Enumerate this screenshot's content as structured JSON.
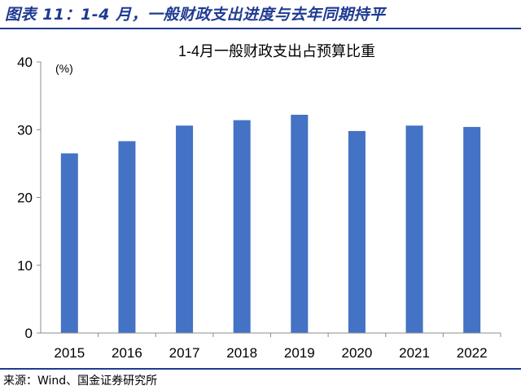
{
  "figure": {
    "title": "图表 11：1-4 月，一般财政支出进度与去年同期持平",
    "source": "来源：Wind、国金证券研究所"
  },
  "chart_data": {
    "type": "bar",
    "title": "1-4月一般财政支出占预算比重",
    "unit_label": "(%)",
    "categories": [
      "2015",
      "2016",
      "2017",
      "2018",
      "2019",
      "2020",
      "2021",
      "2022"
    ],
    "values": [
      26.5,
      28.3,
      30.6,
      31.4,
      32.2,
      29.8,
      30.6,
      30.4
    ],
    "ylim": [
      0,
      40
    ],
    "yticks": [
      0,
      10,
      20,
      30,
      40
    ],
    "grid": false,
    "legend": "none",
    "bar_color": "#4472c4"
  }
}
